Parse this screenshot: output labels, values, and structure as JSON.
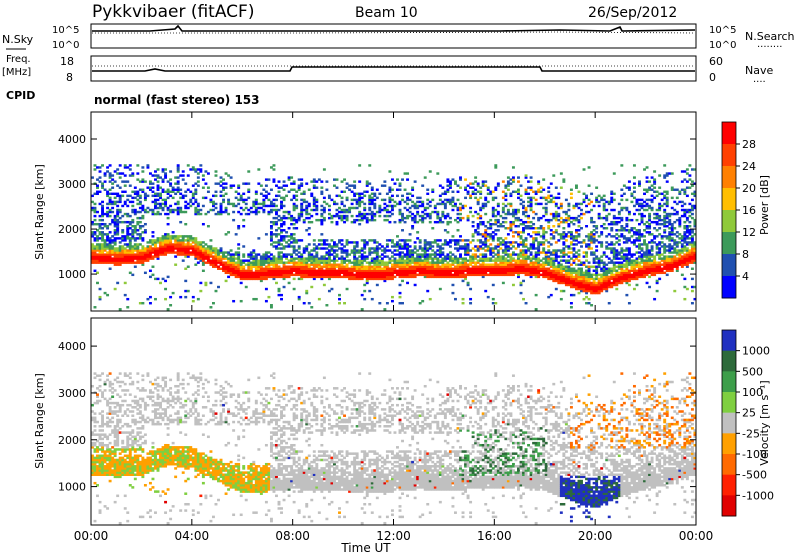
{
  "header": {
    "station": "Pykkvibaer (fitACF)",
    "beam": "Beam 10",
    "date": "26/Sep/2012"
  },
  "top_panels": {
    "nsky_label": "N.Sky",
    "nsearch_label": "N.Search",
    "nsearch_dots": "........",
    "noise_ticks_left": [
      "10^5",
      "10^0"
    ],
    "noise_ticks_right": [
      "10^5",
      "10^0"
    ],
    "freq_label_1": "Freq.",
    "freq_label_2": "[MHz]",
    "freq_ticks": [
      "18",
      "8"
    ],
    "nave_label": "Nave",
    "nave_dots": "....",
    "nave_ticks": [
      "60",
      "0"
    ],
    "cpid_label": "CPID",
    "cpid_text": "normal (fast stereo) 153"
  },
  "power_colorbar": {
    "label": "Power [dB]",
    "ticks": [
      "28",
      "24",
      "20",
      "16",
      "12",
      "8",
      "4"
    ],
    "colors": [
      "#ff0000",
      "#ff4000",
      "#ff8000",
      "#ffbe00",
      "#8fc93a",
      "#3c9a5a",
      "#2050b0",
      "#0000ff"
    ]
  },
  "velocity_colorbar": {
    "label": "Velocity [m s⁻¹]",
    "ticks": [
      "1000",
      "500",
      "100",
      "25",
      "-25",
      "-100",
      "-500",
      "-1000"
    ],
    "colors": [
      "#2030c0",
      "#2d6a3a",
      "#3d9e4a",
      "#7fcf40",
      "#c0c0c0",
      "#ffa000",
      "#ff6a00",
      "#ff2000",
      "#e00000"
    ]
  },
  "chart_data": {
    "type": "heatmap",
    "x_ticks": [
      "00:00",
      "04:00",
      "08:00",
      "12:00",
      "16:00",
      "20:00",
      "00:00"
    ],
    "xlabel": "Time UT",
    "ylabel": "Slant Range [km]",
    "y_ticks": [
      "4000",
      "3000",
      "2000",
      "1000"
    ],
    "xlim": [
      0,
      24
    ],
    "ylim": [
      180,
      4600
    ],
    "echo_band": {
      "times": [
        0,
        1,
        2,
        3,
        4,
        5,
        6,
        7,
        8,
        9,
        10,
        11,
        12,
        13,
        14,
        15,
        16,
        17,
        18,
        19,
        20,
        21,
        22,
        23,
        24
      ],
      "center_km": [
        1350,
        1300,
        1350,
        1550,
        1500,
        1200,
        950,
        1000,
        1050,
        1000,
        1000,
        950,
        1000,
        1050,
        1000,
        1050,
        1050,
        1100,
        1000,
        800,
        650,
        900,
        1050,
        1150,
        1400
      ]
    }
  }
}
